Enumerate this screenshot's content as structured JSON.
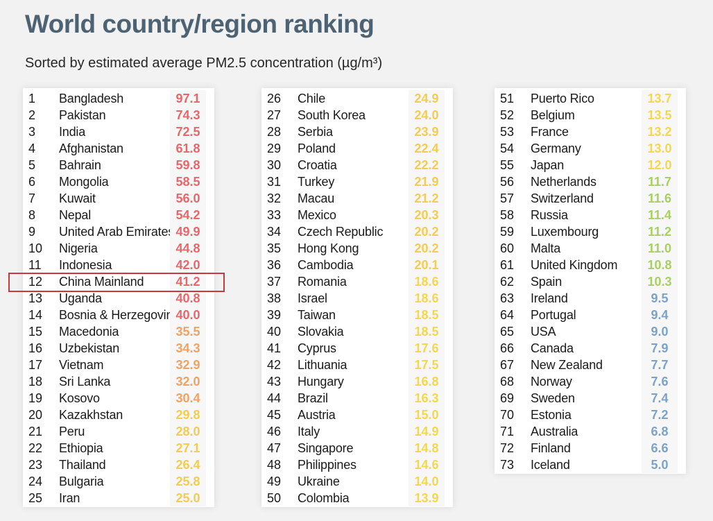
{
  "header": {
    "title": "World country/region ranking",
    "subtitle": "Sorted by estimated average PM2.5 concentration (µg/m³)"
  },
  "highlight_rank": 12,
  "colors": {
    "over_40": "#e8676d",
    "30_to_40": "#f2a263",
    "20_to_30": "#f3cc52",
    "12_to_20": "#f4d84c",
    "10_to_12": "#a9cf63",
    "under_10": "#7da2c9",
    "highlight_border": "#c8383c",
    "title": "#4d6272"
  },
  "ranking": [
    {
      "rank": "1",
      "name": "Bangladesh",
      "value": "97.1"
    },
    {
      "rank": "2",
      "name": "Pakistan",
      "value": "74.3"
    },
    {
      "rank": "3",
      "name": "India",
      "value": "72.5"
    },
    {
      "rank": "4",
      "name": "Afghanistan",
      "value": "61.8"
    },
    {
      "rank": "5",
      "name": "Bahrain",
      "value": "59.8"
    },
    {
      "rank": "6",
      "name": "Mongolia",
      "value": "58.5"
    },
    {
      "rank": "7",
      "name": "Kuwait",
      "value": "56.0"
    },
    {
      "rank": "8",
      "name": "Nepal",
      "value": "54.2"
    },
    {
      "rank": "9",
      "name": "United Arab Emirates",
      "value": "49.9"
    },
    {
      "rank": "10",
      "name": "Nigeria",
      "value": "44.8"
    },
    {
      "rank": "11",
      "name": "Indonesia",
      "value": "42.0"
    },
    {
      "rank": "12",
      "name": "China Mainland",
      "value": "41.2"
    },
    {
      "rank": "13",
      "name": "Uganda",
      "value": "40.8"
    },
    {
      "rank": "14",
      "name": "Bosnia & Herzegovina",
      "value": "40.0"
    },
    {
      "rank": "15",
      "name": "Macedonia",
      "value": "35.5"
    },
    {
      "rank": "16",
      "name": "Uzbekistan",
      "value": "34.3"
    },
    {
      "rank": "17",
      "name": "Vietnam",
      "value": "32.9"
    },
    {
      "rank": "18",
      "name": "Sri Lanka",
      "value": "32.0"
    },
    {
      "rank": "19",
      "name": "Kosovo",
      "value": "30.4"
    },
    {
      "rank": "20",
      "name": "Kazakhstan",
      "value": "29.8"
    },
    {
      "rank": "21",
      "name": "Peru",
      "value": "28.0"
    },
    {
      "rank": "22",
      "name": "Ethiopia",
      "value": "27.1"
    },
    {
      "rank": "23",
      "name": "Thailand",
      "value": "26.4"
    },
    {
      "rank": "24",
      "name": "Bulgaria",
      "value": "25.8"
    },
    {
      "rank": "25",
      "name": "Iran",
      "value": "25.0"
    },
    {
      "rank": "26",
      "name": "Chile",
      "value": "24.9"
    },
    {
      "rank": "27",
      "name": "South Korea",
      "value": "24.0"
    },
    {
      "rank": "28",
      "name": "Serbia",
      "value": "23.9"
    },
    {
      "rank": "29",
      "name": "Poland",
      "value": "22.4"
    },
    {
      "rank": "30",
      "name": "Croatia",
      "value": "22.2"
    },
    {
      "rank": "31",
      "name": "Turkey",
      "value": "21.9"
    },
    {
      "rank": "32",
      "name": "Macau",
      "value": "21.2"
    },
    {
      "rank": "33",
      "name": "Mexico",
      "value": "20.3"
    },
    {
      "rank": "34",
      "name": "Czech Republic",
      "value": "20.2"
    },
    {
      "rank": "35",
      "name": "Hong Kong",
      "value": "20.2"
    },
    {
      "rank": "36",
      "name": "Cambodia",
      "value": "20.1"
    },
    {
      "rank": "37",
      "name": "Romania",
      "value": "18.6"
    },
    {
      "rank": "38",
      "name": "Israel",
      "value": "18.6"
    },
    {
      "rank": "39",
      "name": "Taiwan",
      "value": "18.5"
    },
    {
      "rank": "40",
      "name": "Slovakia",
      "value": "18.5"
    },
    {
      "rank": "41",
      "name": "Cyprus",
      "value": "17.6"
    },
    {
      "rank": "42",
      "name": "Lithuania",
      "value": "17.5"
    },
    {
      "rank": "43",
      "name": "Hungary",
      "value": "16.8"
    },
    {
      "rank": "44",
      "name": "Brazil",
      "value": "16.3"
    },
    {
      "rank": "45",
      "name": "Austria",
      "value": "15.0"
    },
    {
      "rank": "46",
      "name": "Italy",
      "value": "14.9"
    },
    {
      "rank": "47",
      "name": "Singapore",
      "value": "14.8"
    },
    {
      "rank": "48",
      "name": "Philippines",
      "value": "14.6"
    },
    {
      "rank": "49",
      "name": "Ukraine",
      "value": "14.0"
    },
    {
      "rank": "50",
      "name": "Colombia",
      "value": "13.9"
    },
    {
      "rank": "51",
      "name": "Puerto Rico",
      "value": "13.7"
    },
    {
      "rank": "52",
      "name": "Belgium",
      "value": "13.5"
    },
    {
      "rank": "53",
      "name": "France",
      "value": "13.2"
    },
    {
      "rank": "54",
      "name": "Germany",
      "value": "13.0"
    },
    {
      "rank": "55",
      "name": "Japan",
      "value": "12.0"
    },
    {
      "rank": "56",
      "name": "Netherlands",
      "value": "11.7"
    },
    {
      "rank": "57",
      "name": "Switzerland",
      "value": "11.6"
    },
    {
      "rank": "58",
      "name": "Russia",
      "value": "11.4"
    },
    {
      "rank": "59",
      "name": "Luxembourg",
      "value": "11.2"
    },
    {
      "rank": "60",
      "name": "Malta",
      "value": "11.0"
    },
    {
      "rank": "61",
      "name": "United Kingdom",
      "value": "10.8"
    },
    {
      "rank": "62",
      "name": "Spain",
      "value": "10.3"
    },
    {
      "rank": "63",
      "name": "Ireland",
      "value": "9.5"
    },
    {
      "rank": "64",
      "name": "Portugal",
      "value": "9.4"
    },
    {
      "rank": "65",
      "name": "USA",
      "value": "9.0"
    },
    {
      "rank": "66",
      "name": "Canada",
      "value": "7.9"
    },
    {
      "rank": "67",
      "name": "New Zealand",
      "value": "7.7"
    },
    {
      "rank": "68",
      "name": "Norway",
      "value": "7.6"
    },
    {
      "rank": "69",
      "name": "Sweden",
      "value": "7.4"
    },
    {
      "rank": "70",
      "name": "Estonia",
      "value": "7.2"
    },
    {
      "rank": "71",
      "name": "Australia",
      "value": "6.8"
    },
    {
      "rank": "72",
      "name": "Finland",
      "value": "6.6"
    },
    {
      "rank": "73",
      "name": "Iceland",
      "value": "5.0"
    }
  ]
}
